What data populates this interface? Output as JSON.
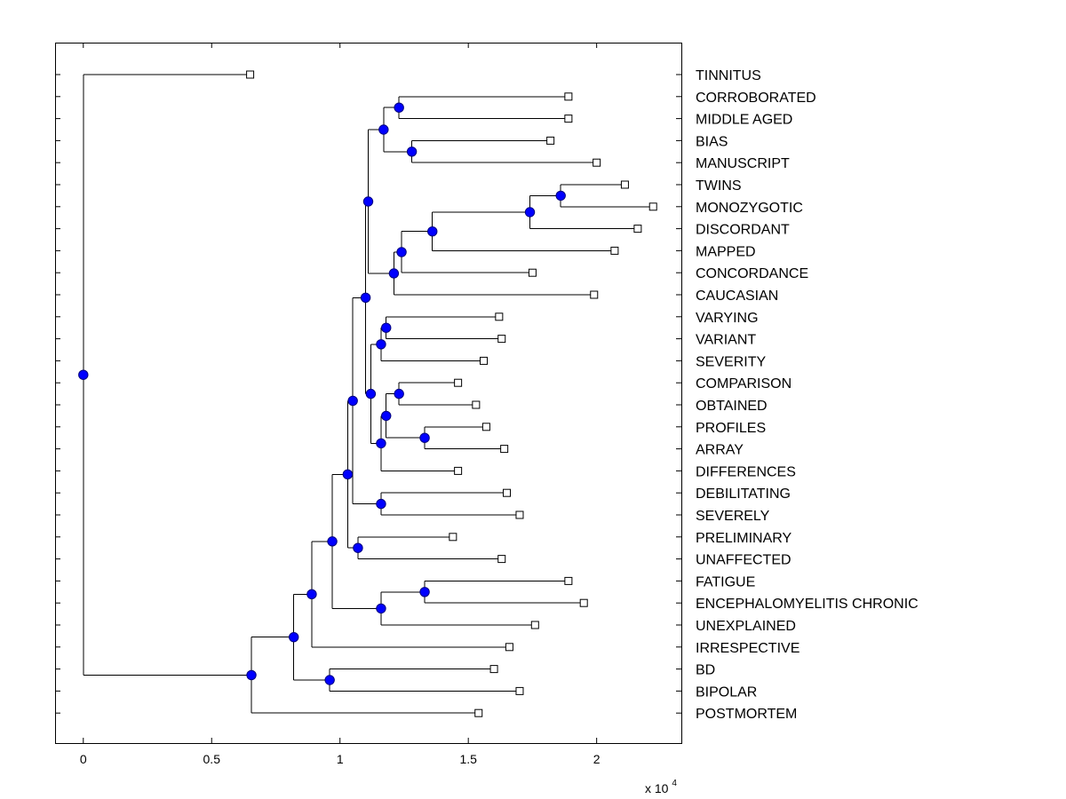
{
  "chart_data": {
    "type": "dendrogram",
    "title": "",
    "xlabel": "",
    "ylabel": "",
    "x_exponent_prefix": "x 10",
    "x_exponent_power": "4",
    "xlim": [
      -0.11,
      2.33
    ],
    "x_ticks": [
      0,
      0.5,
      1,
      1.5,
      2
    ],
    "x_tick_labels": [
      "0",
      "0.5",
      "1",
      "1.5",
      "2"
    ],
    "colors": {
      "line": "#000000",
      "node_fill": "#0000ff",
      "node_stroke": "#000080",
      "leaf_fill": "#ffffff"
    },
    "leaves": [
      {
        "name": "TINNITUS",
        "value": 0.65
      },
      {
        "name": "CORROBORATED",
        "value": 1.89
      },
      {
        "name": "MIDDLE AGED",
        "value": 1.89
      },
      {
        "name": "BIAS",
        "value": 1.82
      },
      {
        "name": "MANUSCRIPT",
        "value": 2.0
      },
      {
        "name": "TWINS",
        "value": 2.11
      },
      {
        "name": "MONOZYGOTIC",
        "value": 2.22
      },
      {
        "name": "DISCORDANT",
        "value": 2.16
      },
      {
        "name": "MAPPED",
        "value": 2.07
      },
      {
        "name": "CONCORDANCE",
        "value": 1.75
      },
      {
        "name": "CAUCASIAN",
        "value": 1.99
      },
      {
        "name": "VARYING",
        "value": 1.62
      },
      {
        "name": "VARIANT",
        "value": 1.63
      },
      {
        "name": "SEVERITY",
        "value": 1.56
      },
      {
        "name": "COMPARISON",
        "value": 1.46
      },
      {
        "name": "OBTAINED",
        "value": 1.53
      },
      {
        "name": "PROFILES",
        "value": 1.57
      },
      {
        "name": "ARRAY",
        "value": 1.64
      },
      {
        "name": "DIFFERENCES",
        "value": 1.46
      },
      {
        "name": "DEBILITATING",
        "value": 1.65
      },
      {
        "name": "SEVERELY",
        "value": 1.7
      },
      {
        "name": "PRELIMINARY",
        "value": 1.44
      },
      {
        "name": "UNAFFECTED",
        "value": 1.63
      },
      {
        "name": "FATIGUE",
        "value": 1.89
      },
      {
        "name": "ENCEPHALOMYELITIS CHRONIC",
        "value": 1.95
      },
      {
        "name": "UNEXPLAINED",
        "value": 1.76
      },
      {
        "name": "IRRESPECTIVE",
        "value": 1.66
      },
      {
        "name": "BD",
        "value": 1.6
      },
      {
        "name": "BIPOLAR",
        "value": 1.7
      },
      {
        "name": "POSTMORTEM",
        "value": 1.54
      }
    ],
    "internal_nodes": [
      {
        "id": "n1",
        "value": 1.23,
        "children": [
          "L1",
          "L2"
        ]
      },
      {
        "id": "n2",
        "value": 1.28,
        "children": [
          "L3",
          "L4"
        ]
      },
      {
        "id": "n3",
        "value": 1.17,
        "children": [
          "n1",
          "n2"
        ]
      },
      {
        "id": "n4",
        "value": 1.86,
        "children": [
          "L5",
          "L6"
        ]
      },
      {
        "id": "n5",
        "value": 1.74,
        "children": [
          "n4",
          "L7"
        ]
      },
      {
        "id": "n6",
        "value": 1.36,
        "children": [
          "n5",
          "L8"
        ]
      },
      {
        "id": "n7",
        "value": 1.24,
        "children": [
          "n6",
          "L9"
        ]
      },
      {
        "id": "n8",
        "value": 1.21,
        "children": [
          "n7",
          "L10"
        ]
      },
      {
        "id": "n9",
        "value": 1.11,
        "children": [
          "n3",
          "n8"
        ]
      },
      {
        "id": "n10",
        "value": 1.18,
        "children": [
          "L11",
          "L12"
        ]
      },
      {
        "id": "n11",
        "value": 1.16,
        "children": [
          "n10",
          "L13"
        ]
      },
      {
        "id": "n12",
        "value": 1.23,
        "children": [
          "L14",
          "L15"
        ]
      },
      {
        "id": "n13",
        "value": 1.33,
        "children": [
          "L16",
          "L17"
        ]
      },
      {
        "id": "n14",
        "value": 1.18,
        "children": [
          "n12",
          "n13"
        ]
      },
      {
        "id": "n15",
        "value": 1.16,
        "children": [
          "n14",
          "L18"
        ]
      },
      {
        "id": "n16",
        "value": 1.12,
        "children": [
          "n11",
          "n15"
        ]
      },
      {
        "id": "n17",
        "value": 1.1,
        "children": [
          "n9",
          "n16"
        ]
      },
      {
        "id": "n18",
        "value": 1.16,
        "children": [
          "L19",
          "L20"
        ]
      },
      {
        "id": "n19",
        "value": 1.05,
        "children": [
          "n17",
          "n18"
        ]
      },
      {
        "id": "n20",
        "value": 1.07,
        "children": [
          "L21",
          "L22"
        ]
      },
      {
        "id": "n21",
        "value": 1.03,
        "children": [
          "n19",
          "n20"
        ]
      },
      {
        "id": "n22",
        "value": 1.33,
        "children": [
          "L23",
          "L24"
        ]
      },
      {
        "id": "n23",
        "value": 1.16,
        "children": [
          "n22",
          "L25"
        ]
      },
      {
        "id": "n24",
        "value": 0.97,
        "children": [
          "n21",
          "n23"
        ]
      },
      {
        "id": "n25",
        "value": 0.89,
        "children": [
          "n24",
          "L26"
        ]
      },
      {
        "id": "n26",
        "value": 0.96,
        "children": [
          "L27",
          "L28"
        ]
      },
      {
        "id": "n27",
        "value": 0.82,
        "children": [
          "n25",
          "n26"
        ]
      },
      {
        "id": "n28",
        "value": 0.655,
        "children": [
          "n27",
          "L29"
        ]
      },
      {
        "id": "root",
        "value": 0,
        "children": [
          "L0",
          "n28"
        ]
      }
    ]
  }
}
